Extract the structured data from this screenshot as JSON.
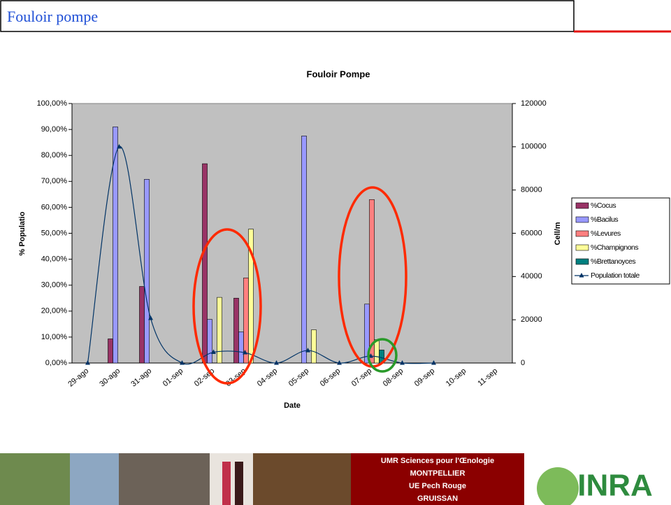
{
  "slide": {
    "title": "Fouloir pompe"
  },
  "chart_data": {
    "type": "bar",
    "title": "Fouloir Pompe",
    "x_label": "Date",
    "y_label": "% Populatio",
    "y2_label": "Cell/m",
    "categories": [
      "29-ago",
      "30-ago",
      "31-ago",
      "01-sep",
      "02-sep",
      "03-sep",
      "04-sep",
      "05-sep",
      "06-sep",
      "07-sep",
      "08-sep",
      "09-sep",
      "10-sep",
      "11-sep"
    ],
    "series": [
      {
        "name": "%Cocus",
        "color": "#993366",
        "values": [
          0,
          9.3,
          29.5,
          0,
          76.8,
          25,
          0,
          0,
          0,
          0,
          0,
          0,
          null,
          null
        ]
      },
      {
        "name": "%Bacilus",
        "color": "#9999ff",
        "values": [
          0,
          91,
          70.8,
          0,
          16.8,
          12,
          0,
          87.5,
          0,
          22.7,
          0,
          0,
          null,
          null
        ]
      },
      {
        "name": "%Levures",
        "color": "#ff8080",
        "values": [
          0,
          0,
          0,
          0,
          0,
          32.8,
          0,
          0,
          0,
          63,
          0,
          0,
          null,
          null
        ]
      },
      {
        "name": "%Champignons",
        "color": "#ffff99",
        "values": [
          0,
          0,
          0,
          0,
          25.3,
          51.6,
          0,
          12.8,
          0,
          9,
          0,
          0,
          null,
          null
        ]
      },
      {
        "name": "%Brettanoyces",
        "color": "#008080",
        "values": [
          0,
          0,
          0,
          0,
          0,
          0,
          0,
          0,
          0,
          5,
          0,
          0,
          null,
          null
        ]
      },
      {
        "name": "Population totale",
        "color": "#003366",
        "type": "line",
        "axis": "y2",
        "values": [
          0,
          100000,
          20700,
          0,
          5000,
          4800,
          0,
          5800,
          0,
          3200,
          0,
          0,
          null,
          null
        ]
      }
    ],
    "ylim": [
      0,
      100
    ],
    "yticks": [
      {
        "value": 0,
        "label": "0,00%"
      },
      {
        "value": 10,
        "label": "10,00%"
      },
      {
        "value": 20,
        "label": "20,00%"
      },
      {
        "value": 30,
        "label": "30,00%"
      },
      {
        "value": 40,
        "label": "40,00%"
      },
      {
        "value": 50,
        "label": "50,00%"
      },
      {
        "value": 60,
        "label": "60,00%"
      },
      {
        "value": 70,
        "label": "70,00%"
      },
      {
        "value": 80,
        "label": "80,00%"
      },
      {
        "value": 90,
        "label": "90,00%"
      },
      {
        "value": 100,
        "label": "100,00%"
      }
    ],
    "y2lim": [
      0,
      120000
    ],
    "y2ticks": [
      0,
      20000,
      40000,
      60000,
      80000,
      100000,
      120000
    ],
    "plot_background": "#c0c0c0",
    "legend": "right"
  },
  "footer": {
    "lines": [
      "UMR Sciences pour l'Œnologie",
      "MONTPELLIER",
      "UE Pech Rouge",
      "GRUISSAN"
    ],
    "logo": "INRA"
  }
}
